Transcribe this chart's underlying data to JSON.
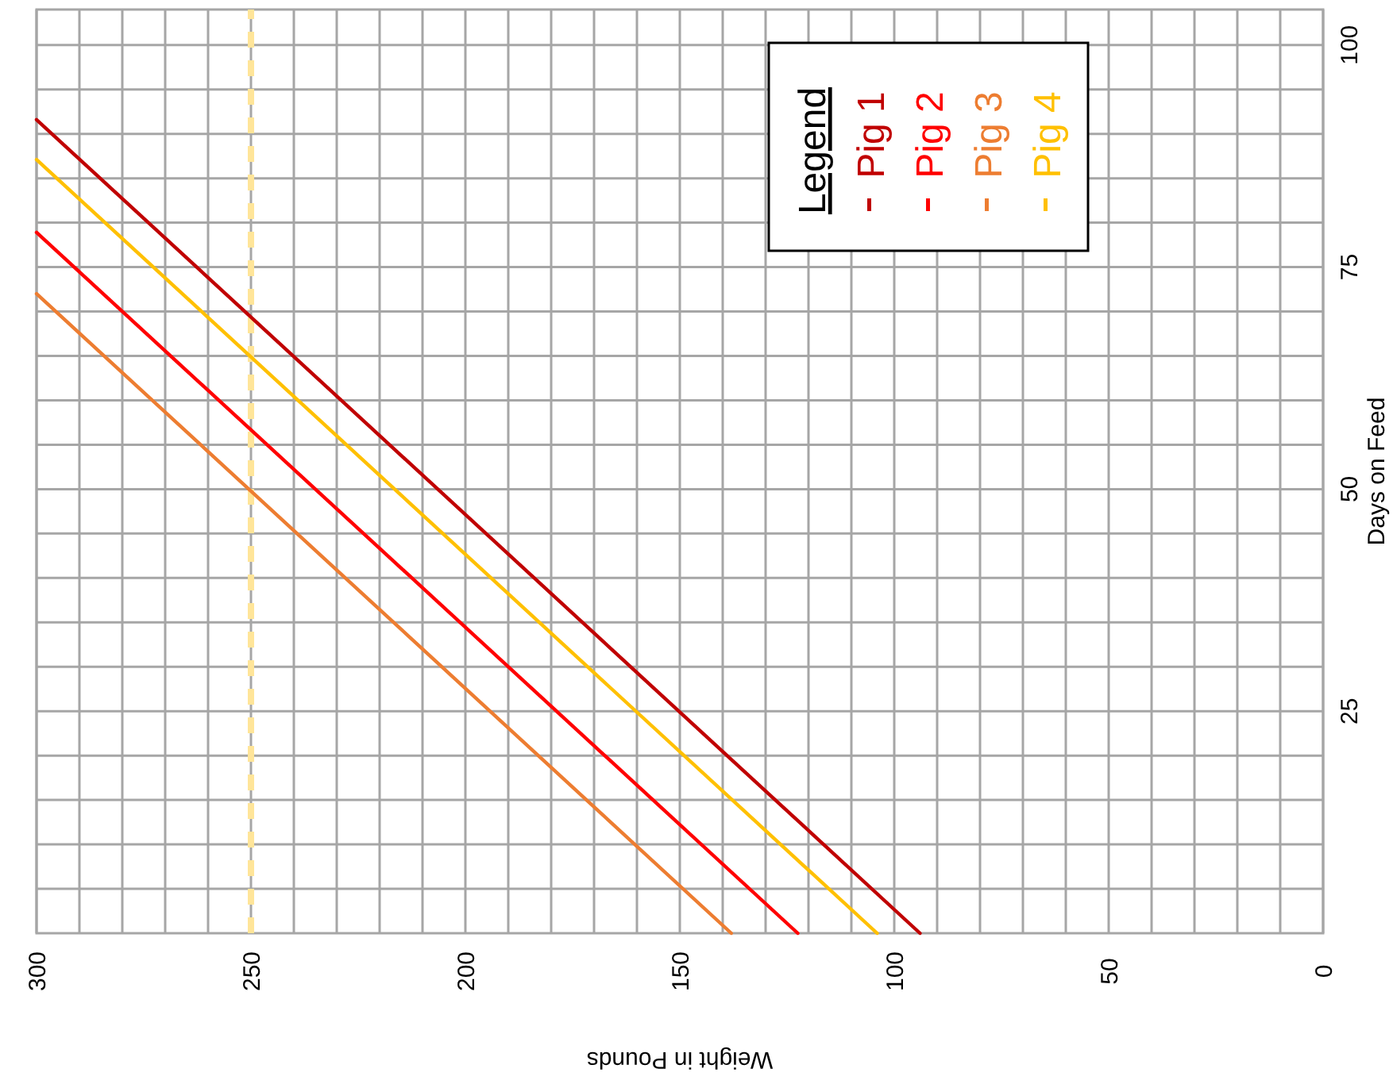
{
  "chart_data": {
    "type": "line",
    "xlabel": "Weight in Pounds",
    "ylabel": "Days on Feed",
    "xlim": [
      300,
      0
    ],
    "ylim": [
      0,
      104
    ],
    "xticks": [
      300,
      {
        "value": 290,
        "label": null
      },
      {
        "value": 280,
        "label": null
      },
      {
        "value": 270,
        "label": null
      },
      {
        "value": 260,
        "label": null
      },
      250,
      {
        "value": 240,
        "label": null
      },
      {
        "value": 230,
        "label": null
      },
      {
        "value": 220,
        "label": null
      },
      {
        "value": 210,
        "label": null
      },
      200,
      {
        "value": 190,
        "label": null
      },
      {
        "value": 180,
        "label": null
      },
      {
        "value": 170,
        "label": null
      },
      {
        "value": 160,
        "label": null
      },
      150,
      {
        "value": 140,
        "label": null
      },
      {
        "value": 130,
        "label": null
      },
      {
        "value": 120,
        "label": null
      },
      {
        "value": 110,
        "label": null
      },
      100,
      {
        "value": 90,
        "label": null
      },
      {
        "value": 80,
        "label": null
      },
      {
        "value": 70,
        "label": null
      },
      {
        "value": 60,
        "label": null
      },
      50,
      {
        "value": 40,
        "label": null
      },
      {
        "value": 30,
        "label": null
      },
      {
        "value": 20,
        "label": null
      },
      {
        "value": 10,
        "label": null
      },
      0
    ],
    "yticks": [
      {
        "value": 5,
        "label": null
      },
      {
        "value": 10,
        "label": null
      },
      {
        "value": 15,
        "label": null
      },
      {
        "value": 20,
        "label": null
      },
      25,
      {
        "value": 30,
        "label": null
      },
      {
        "value": 35,
        "label": null
      },
      {
        "value": 40,
        "label": null
      },
      {
        "value": 45,
        "label": null
      },
      50,
      {
        "value": 55,
        "label": null
      },
      {
        "value": 60,
        "label": null
      },
      {
        "value": 65,
        "label": null
      },
      {
        "value": 70,
        "label": null
      },
      75,
      {
        "value": 80,
        "label": null
      },
      {
        "value": 85,
        "label": null
      },
      {
        "value": 90,
        "label": null
      },
      {
        "value": 95,
        "label": null
      },
      100
    ],
    "grid": true,
    "legend": "top right",
    "legend_title": "Legend",
    "marker": "none",
    "line_style": "solid",
    "ref_lines": [
      {
        "axis": "x",
        "value": 250,
        "color": "#ffe599",
        "line_style": "dashed"
      }
    ],
    "series": [
      {
        "name": "Pig 1",
        "color": "#c00000",
        "x": [
          94,
          300
        ],
        "values": [
          0,
          91.6
        ]
      },
      {
        "name": "Pig 2",
        "color": "#ff0000",
        "x": [
          122.5,
          300
        ],
        "values": [
          0,
          78.9
        ]
      },
      {
        "name": "Pig 3",
        "color": "#ed7d31",
        "x": [
          138,
          300
        ],
        "values": [
          0,
          72
        ]
      },
      {
        "name": "Pig 4",
        "color": "#ffc000",
        "x": [
          104,
          300
        ],
        "values": [
          0,
          87.1
        ]
      }
    ]
  }
}
